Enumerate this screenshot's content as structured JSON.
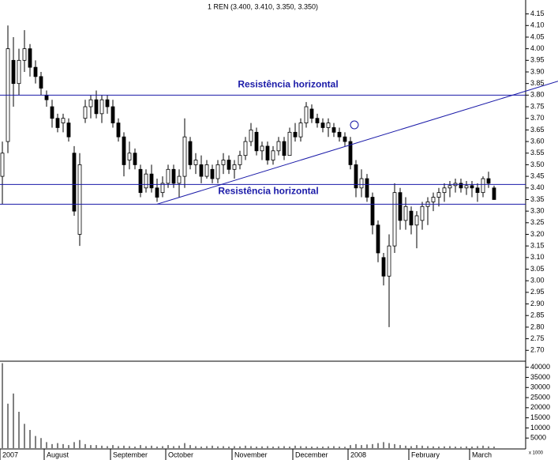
{
  "chart_data": {
    "type": "candlestick",
    "title": "1 REN (3.400, 3.410, 3.350, 3.350)",
    "categories": [
      "2007",
      null,
      null,
      null,
      null,
      null,
      null,
      null,
      "August",
      null,
      null,
      null,
      null,
      null,
      null,
      null,
      null,
      null,
      null,
      null,
      "September",
      null,
      null,
      null,
      null,
      null,
      null,
      null,
      null,
      null,
      "October",
      null,
      null,
      null,
      null,
      null,
      null,
      null,
      null,
      null,
      null,
      null,
      "November",
      null,
      null,
      null,
      null,
      null,
      null,
      null,
      null,
      null,
      null,
      "December",
      null,
      null,
      null,
      null,
      null,
      null,
      null,
      null,
      null,
      "2008",
      null,
      null,
      null,
      null,
      null,
      null,
      null,
      null,
      null,
      null,
      "February",
      null,
      null,
      null,
      null,
      null,
      null,
      null,
      null,
      null,
      null,
      "March",
      null,
      null,
      null,
      null
    ],
    "open": [
      3.45,
      3.6,
      3.95,
      3.85,
      3.95,
      4.0,
      3.92,
      3.88,
      3.8,
      3.75,
      3.7,
      3.68,
      3.68,
      3.55,
      3.2,
      3.7,
      3.75,
      3.78,
      3.72,
      3.78,
      3.75,
      3.68,
      3.62,
      3.52,
      3.55,
      3.48,
      3.4,
      3.46,
      3.4,
      3.38,
      3.42,
      3.48,
      3.42,
      3.45,
      3.6,
      3.5,
      3.5,
      3.45,
      3.48,
      3.44,
      3.5,
      3.52,
      3.48,
      3.5,
      3.54,
      3.6,
      3.64,
      3.56,
      3.58,
      3.52,
      3.56,
      3.6,
      3.54,
      3.64,
      3.62,
      3.68,
      3.74,
      3.7,
      3.68,
      3.66,
      3.66,
      3.64,
      3.62,
      3.6,
      3.5,
      3.4,
      3.44,
      3.36,
      3.24,
      3.1,
      3.02,
      3.15,
      3.38,
      3.26,
      3.3,
      3.24,
      3.26,
      3.32,
      3.34,
      3.36,
      3.38,
      3.4,
      3.41,
      3.42,
      3.4,
      3.41,
      3.4,
      3.38,
      3.44,
      3.4
    ],
    "high": [
      3.6,
      4.1,
      4.05,
      4.0,
      4.08,
      4.02,
      3.95,
      3.9,
      3.82,
      3.78,
      3.72,
      3.72,
      3.7,
      3.58,
      3.55,
      3.78,
      3.8,
      3.82,
      3.8,
      3.8,
      3.78,
      3.7,
      3.64,
      3.6,
      3.57,
      3.5,
      3.48,
      3.5,
      3.44,
      3.45,
      3.5,
      3.5,
      3.48,
      3.7,
      3.62,
      3.55,
      3.54,
      3.52,
      3.5,
      3.52,
      3.55,
      3.54,
      3.52,
      3.56,
      3.62,
      3.68,
      3.66,
      3.6,
      3.6,
      3.58,
      3.62,
      3.62,
      3.66,
      3.68,
      3.7,
      3.77,
      3.76,
      3.72,
      3.7,
      3.7,
      3.68,
      3.66,
      3.64,
      3.62,
      3.52,
      3.48,
      3.46,
      3.38,
      3.26,
      3.12,
      3.2,
      3.42,
      3.4,
      3.36,
      3.32,
      3.3,
      3.34,
      3.36,
      3.38,
      3.4,
      3.42,
      3.43,
      3.44,
      3.44,
      3.43,
      3.43,
      3.42,
      3.45,
      3.47,
      3.41
    ],
    "low": [
      3.33,
      3.55,
      3.75,
      3.8,
      3.9,
      3.88,
      3.85,
      3.8,
      3.75,
      3.66,
      3.64,
      3.64,
      3.6,
      3.28,
      3.15,
      3.68,
      3.7,
      3.7,
      3.68,
      3.72,
      3.66,
      3.6,
      3.45,
      3.48,
      3.48,
      3.36,
      3.38,
      3.38,
      3.34,
      3.36,
      3.4,
      3.4,
      3.36,
      3.4,
      3.48,
      3.46,
      3.42,
      3.44,
      3.42,
      3.42,
      3.46,
      3.46,
      3.44,
      3.48,
      3.52,
      3.58,
      3.54,
      3.52,
      3.5,
      3.5,
      3.54,
      3.52,
      3.54,
      3.6,
      3.6,
      3.66,
      3.68,
      3.66,
      3.64,
      3.62,
      3.62,
      3.6,
      3.58,
      3.48,
      3.36,
      3.36,
      3.34,
      3.2,
      3.08,
      2.98,
      2.8,
      3.12,
      3.22,
      3.22,
      3.2,
      3.14,
      3.22,
      3.24,
      3.3,
      3.32,
      3.34,
      3.36,
      3.38,
      3.38,
      3.37,
      3.36,
      3.34,
      3.36,
      3.4,
      3.35
    ],
    "close": [
      3.55,
      4.0,
      3.85,
      3.95,
      4.0,
      3.92,
      3.88,
      3.83,
      3.78,
      3.7,
      3.66,
      3.7,
      3.62,
      3.3,
      3.5,
      3.75,
      3.78,
      3.72,
      3.78,
      3.75,
      3.68,
      3.62,
      3.5,
      3.55,
      3.5,
      3.38,
      3.46,
      3.4,
      3.36,
      3.42,
      3.48,
      3.42,
      3.45,
      3.62,
      3.5,
      3.52,
      3.45,
      3.5,
      3.44,
      3.5,
      3.52,
      3.48,
      3.5,
      3.54,
      3.6,
      3.65,
      3.56,
      3.58,
      3.52,
      3.56,
      3.6,
      3.54,
      3.64,
      3.62,
      3.68,
      3.75,
      3.7,
      3.68,
      3.66,
      3.68,
      3.64,
      3.62,
      3.6,
      3.5,
      3.4,
      3.44,
      3.36,
      3.24,
      3.12,
      3.02,
      3.15,
      3.38,
      3.26,
      3.32,
      3.24,
      3.28,
      3.32,
      3.34,
      3.36,
      3.38,
      3.4,
      3.41,
      3.42,
      3.4,
      3.41,
      3.4,
      3.38,
      3.44,
      3.42,
      3.35
    ],
    "volume": [
      42000,
      22000,
      27000,
      18000,
      12000,
      9000,
      6000,
      5000,
      3000,
      2000,
      2500,
      2000,
      1500,
      3000,
      4000,
      2000,
      1500,
      1500,
      1200,
      1000,
      1500,
      1000,
      1200,
      1000,
      800,
      1500,
      1000,
      1200,
      800,
      1000,
      1500,
      1000,
      1200,
      2500,
      1500,
      1000,
      800,
      1000,
      1200,
      900,
      1000,
      800,
      1000,
      900,
      1200,
      1000,
      800,
      900,
      1000,
      800,
      900,
      1000,
      800,
      1200,
      1000,
      900,
      800,
      700,
      800,
      900,
      1000,
      800,
      700,
      1500,
      2000,
      1500,
      1800,
      2000,
      2500,
      3000,
      2500,
      2000,
      1500,
      1200,
      1000,
      1500,
      1200,
      1000,
      900,
      800,
      900,
      1000,
      800,
      700,
      900,
      800,
      1000,
      1200,
      900,
      800
    ],
    "ylim": [
      2.66,
      4.21
    ],
    "yticks": [
      {
        "value": 2.7,
        "label": "2.70"
      },
      2.75,
      {
        "value": 2.8,
        "label": "2.80"
      },
      2.85,
      {
        "value": 2.9,
        "label": "2.90"
      },
      2.95,
      {
        "value": 3,
        "label": "3.00"
      },
      3.05,
      {
        "value": 3.1,
        "label": "3.10"
      },
      3.15,
      {
        "value": 3.2,
        "label": "3.20"
      },
      3.25,
      {
        "value": 3.3,
        "label": "3.30"
      },
      3.35,
      {
        "value": 3.4,
        "label": "3.40"
      },
      3.45,
      {
        "value": 3.5,
        "label": "3.50"
      },
      3.55,
      {
        "value": 3.6,
        "label": "3.60"
      },
      3.65,
      {
        "value": 3.7,
        "label": "3.70"
      },
      3.75,
      {
        "value": 3.8,
        "label": "3.80"
      },
      3.85,
      {
        "value": 3.9,
        "label": "3.90"
      },
      3.95,
      {
        "value": 4,
        "label": "4.00"
      },
      4.05,
      {
        "value": 4.1,
        "label": "4.10"
      },
      4.15
    ],
    "volume_ylim": [
      0,
      43000
    ],
    "volume_yticks": [
      5000,
      10000,
      15000,
      20000,
      25000,
      30000,
      35000,
      40000
    ],
    "volume_unit": "x 1000",
    "reference_lines": [
      {
        "value": 3.8,
        "label": "Resistência horizontal"
      },
      {
        "value": 3.415,
        "label": "Resistência horizontal"
      },
      {
        "value": 3.33
      }
    ],
    "trend_line": [
      3.33,
      3.86
    ]
  }
}
